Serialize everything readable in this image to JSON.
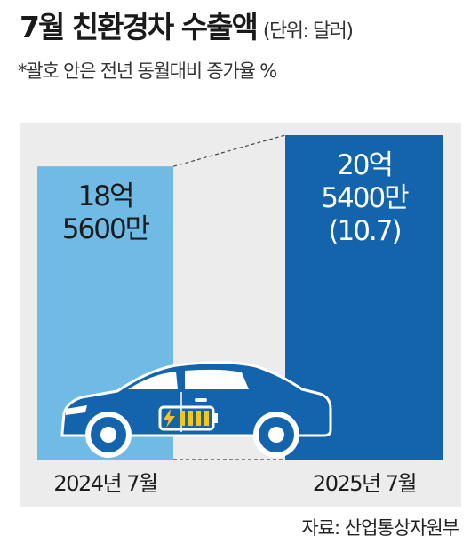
{
  "header": {
    "title": "7월 친환경차 수출액",
    "unit": "(단위: 달러)",
    "note": "*괄호 안은 전년 동월대비 증가율 %"
  },
  "source": "자료: 산업통상자원부",
  "colors": {
    "bar_2024": "#6fbbe6",
    "bar_2025": "#1463ad",
    "panel": "#ececec",
    "car": "#1463ad",
    "battery_charge": "#f5c518"
  },
  "chart_data": {
    "type": "bar",
    "title": "7월 친환경차 수출액",
    "ylabel": "",
    "xlabel": "",
    "categories": [
      "2024년 7월",
      "2025년 7월"
    ],
    "values": [
      1856000000,
      2054000000
    ],
    "value_labels": [
      [
        "18억",
        "5600만"
      ],
      [
        "20억",
        "5400만",
        "(10.7)"
      ]
    ],
    "growth_rate_percent": 10.7
  }
}
